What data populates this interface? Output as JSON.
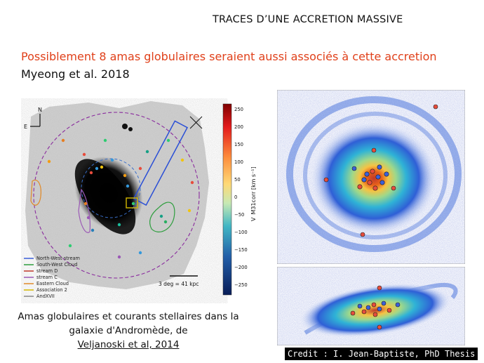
{
  "slide": {
    "title": "TRACES D’UNE ACCRETION MASSIVE",
    "subtitle": "Possiblement 8 amas globulaires seraient aussi associés à cette accretion",
    "citation": "Myeong et al. 2018",
    "caption_line1": "Amas globulaires et courants stellaires dans la",
    "caption_line2": "galaxie d'Andromède, de",
    "caption_link": "Veljanoski et al,  2014",
    "credit": "Credit : I. Jean-Baptiste, PhD Thesis"
  },
  "left_figure": {
    "compass_n": "N",
    "compass_e": "E",
    "scale_label": "3 deg = 41 kpc",
    "legend": [
      {
        "label": "North-West stream",
        "color": "#3b5fd9"
      },
      {
        "label": "South-West Cloud",
        "color": "#2e9e3e"
      },
      {
        "label": "stream D",
        "color": "#c0392b"
      },
      {
        "label": "stream C",
        "color": "#9b59b6"
      },
      {
        "label": "Eastern Cloud",
        "color": "#e08a2a"
      },
      {
        "label": "Association 2",
        "color": "#d4b800"
      },
      {
        "label": "AndXVII",
        "color": "#888888"
      }
    ],
    "colorbar_ticks": [
      "250",
      "200",
      "150",
      "100",
      "50",
      "0",
      "−50",
      "−100",
      "−150",
      "−200",
      "−250"
    ],
    "colorbar_label": "V_M31corr [km s⁻¹]"
  }
}
